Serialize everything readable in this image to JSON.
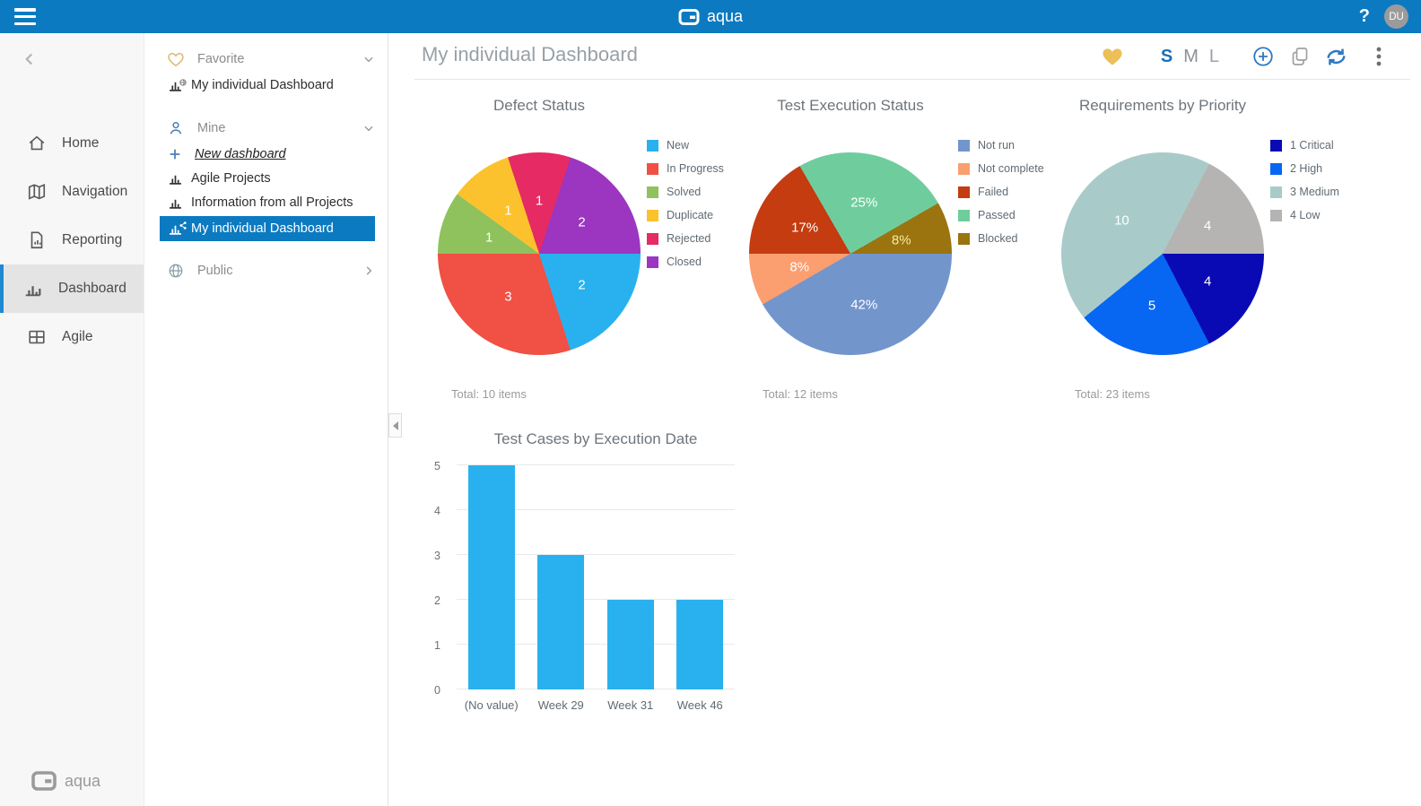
{
  "topbar": {
    "brand": "aqua",
    "help_label": "?",
    "avatar_initials": "DU"
  },
  "sidebar": {
    "items": [
      {
        "label": "Home"
      },
      {
        "label": "Navigation"
      },
      {
        "label": "Reporting"
      },
      {
        "label": "Dashboard"
      },
      {
        "label": "Agile"
      }
    ],
    "selected_item": "Dashboard",
    "footer_brand": "aqua"
  },
  "panel": {
    "favorite": {
      "title": "Favorite",
      "items": [
        {
          "label": "My individual Dashboard"
        }
      ]
    },
    "mine": {
      "title": "Mine",
      "new_dashboard_label": "New dashboard",
      "items": [
        {
          "label": "Agile Projects"
        },
        {
          "label": "Information from all Projects"
        },
        {
          "label": "My individual Dashboard",
          "selected": true
        }
      ]
    },
    "public": {
      "title": "Public"
    }
  },
  "main": {
    "title": "My individual Dashboard",
    "toolbar": {
      "sizes": [
        "S",
        "M",
        "L"
      ],
      "selected_size": "S"
    }
  },
  "colors": {
    "topbar_blue": "#0c7ac1",
    "selection_blue": "#0c7ac1",
    "accent_border": "#1f8ad2",
    "favorite_heart": "#ecbf58"
  },
  "chart_data": [
    {
      "type": "pie",
      "title": "Defect Status",
      "footer": "Total: 10 items",
      "legend_position": "right",
      "start_at": "east-clockwise",
      "slices": [
        {
          "label": "New",
          "value": 2,
          "display": "2",
          "color": "#29b1ef"
        },
        {
          "label": "In Progress",
          "value": 3,
          "display": "3",
          "color": "#f15044"
        },
        {
          "label": "Solved",
          "value": 1,
          "display": "1",
          "color": "#8fc25c"
        },
        {
          "label": "Duplicate",
          "value": 1,
          "display": "1",
          "color": "#fcc22d"
        },
        {
          "label": "Rejected",
          "value": 1,
          "display": "1",
          "color": "#e62a63"
        },
        {
          "label": "Closed",
          "value": 2,
          "display": "2",
          "color": "#9c35c0"
        }
      ]
    },
    {
      "type": "pie",
      "title": "Test Execution Status",
      "footer": "Total: 12 items",
      "legend_position": "right",
      "start_at": "east-clockwise",
      "slices": [
        {
          "label": "Not run",
          "value": 5,
          "display": "42%",
          "color": "#7295cc"
        },
        {
          "label": "Not complete",
          "value": 1,
          "display": "8%",
          "color": "#fb9e70"
        },
        {
          "label": "Failed",
          "value": 2,
          "display": "17%",
          "color": "#c43c10"
        },
        {
          "label": "Passed",
          "value": 3,
          "display": "25%",
          "color": "#6fcd9d"
        },
        {
          "label": "Blocked",
          "value": 1,
          "display": "8%",
          "color": "#9b7410",
          "label_color": "#f3ee9e"
        }
      ]
    },
    {
      "type": "pie",
      "title": "Requirements by Priority",
      "footer": "Total: 23 items",
      "legend_position": "right",
      "start_at": "east-clockwise",
      "slices": [
        {
          "label": "1 Critical",
          "value": 4,
          "display": "4",
          "color": "#0a0ab5"
        },
        {
          "label": "2 High",
          "value": 5,
          "display": "5",
          "color": "#0767f2"
        },
        {
          "label": "3 Medium",
          "value": 10,
          "display": "10",
          "color": "#a8cbc9"
        },
        {
          "label": "4 Low",
          "value": 4,
          "display": "4",
          "color": "#b5b4b3"
        }
      ]
    },
    {
      "type": "bar",
      "title": "Test Cases by Execution Date",
      "categories": [
        "(No value)",
        "Week 29",
        "Week 31",
        "Week 46"
      ],
      "values": [
        5,
        3,
        2,
        2
      ],
      "bar_color": "#29b1ef",
      "ylim": [
        0,
        5
      ],
      "yticks": [
        0,
        1,
        2,
        3,
        4,
        5
      ],
      "grid": true,
      "xlabel": "",
      "ylabel": ""
    }
  ]
}
